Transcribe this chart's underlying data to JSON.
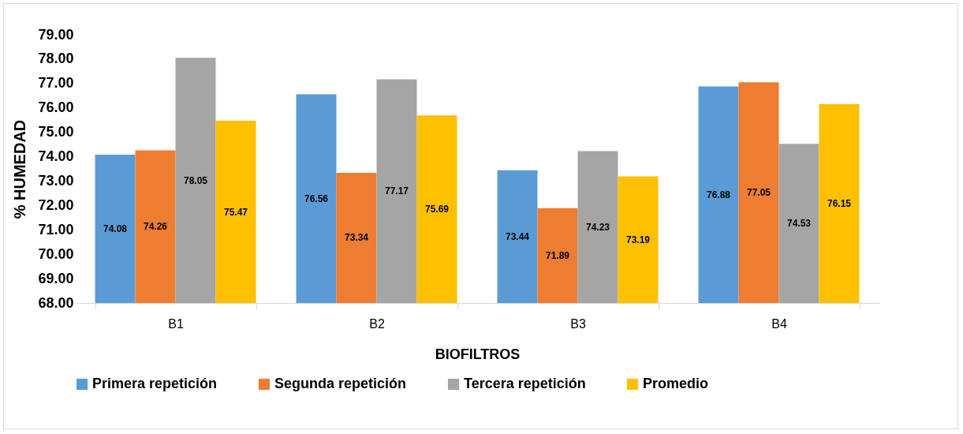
{
  "chart_data": {
    "type": "bar",
    "xlabel": "BIOFILTROS",
    "ylabel": "% HUMEDAD",
    "categories": [
      "B1",
      "B2",
      "B3",
      "B4"
    ],
    "series": [
      {
        "name": "Primera repetición",
        "color": "#5b9bd5",
        "values": [
          74.08,
          76.56,
          73.44,
          76.88
        ]
      },
      {
        "name": "Segunda repetición",
        "color": "#ed7d31",
        "values": [
          74.26,
          73.34,
          71.89,
          77.05
        ]
      },
      {
        "name": "Tercera repetición",
        "color": "#a5a5a5",
        "values": [
          78.05,
          77.17,
          74.23,
          74.53
        ]
      },
      {
        "name": "Promedio",
        "color": "#ffc000",
        "values": [
          75.47,
          75.69,
          73.19,
          76.15
        ]
      }
    ],
    "ylim": [
      68,
      79
    ],
    "yticks": [
      {
        "value": 68,
        "label": "68.00"
      },
      {
        "value": 69,
        "label": "69.00"
      },
      {
        "value": 70,
        "label": "70.00"
      },
      {
        "value": 71,
        "label": "71.00"
      },
      {
        "value": 72,
        "label": "72.00"
      },
      {
        "value": 73,
        "label": "73.00"
      },
      {
        "value": 74,
        "label": "74.00"
      },
      {
        "value": 75,
        "label": "75.00"
      },
      {
        "value": 76,
        "label": "76.00"
      },
      {
        "value": 77,
        "label": "77.00"
      },
      {
        "value": 78,
        "label": "78.00"
      },
      {
        "value": 79,
        "label": "79.00"
      }
    ],
    "data_labels": true,
    "grid": false,
    "legend": "bottom"
  }
}
